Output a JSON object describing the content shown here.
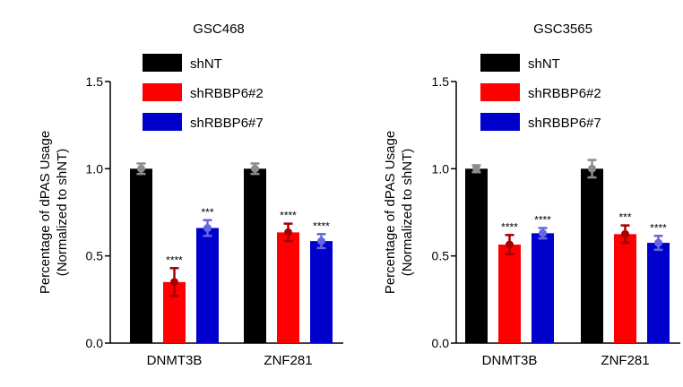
{
  "chart_data": [
    {
      "type": "bar",
      "title": "GSC468",
      "ylabel": "Percentage of dPAS Usage",
      "ylabel2": "(Normalized to shNT)",
      "ylim": [
        0,
        1.5
      ],
      "yticks": [
        "0.0",
        "0.5",
        "1.0",
        "1.5"
      ],
      "categories": [
        "DNMT3B",
        "ZNF281"
      ],
      "legend_position": "top",
      "series": [
        {
          "name": "shNT",
          "color": "#000000",
          "values": [
            1.0,
            1.0
          ],
          "errors": [
            0.03,
            0.03
          ],
          "significance": [
            "",
            ""
          ]
        },
        {
          "name": "shRBBP6#2",
          "color": "#ff0000",
          "values": [
            0.35,
            0.635
          ],
          "errors": [
            0.08,
            0.05
          ],
          "significance": [
            "****",
            "****"
          ]
        },
        {
          "name": "shRBBP6#7",
          "color": "#0000cc",
          "values": [
            0.66,
            0.585
          ],
          "errors": [
            0.045,
            0.04
          ],
          "significance": [
            "***",
            "****"
          ]
        }
      ]
    },
    {
      "type": "bar",
      "title": "GSC3565",
      "ylabel": "Percentage of dPAS Usage",
      "ylabel2": "(Normalized to shNT)",
      "ylim": [
        0,
        1.5
      ],
      "yticks": [
        "0.0",
        "0.5",
        "1.0",
        "1.5"
      ],
      "categories": [
        "DNMT3B",
        "ZNF281"
      ],
      "legend_position": "top",
      "series": [
        {
          "name": "shNT",
          "color": "#000000",
          "values": [
            1.0,
            1.0
          ],
          "errors": [
            0.02,
            0.05
          ],
          "significance": [
            "",
            ""
          ]
        },
        {
          "name": "shRBBP6#2",
          "color": "#ff0000",
          "values": [
            0.565,
            0.625
          ],
          "errors": [
            0.055,
            0.05
          ],
          "significance": [
            "****",
            "***"
          ]
        },
        {
          "name": "shRBBP6#7",
          "color": "#0000cc",
          "values": [
            0.63,
            0.575
          ],
          "errors": [
            0.03,
            0.04
          ],
          "significance": [
            "****",
            "****"
          ]
        }
      ]
    }
  ]
}
